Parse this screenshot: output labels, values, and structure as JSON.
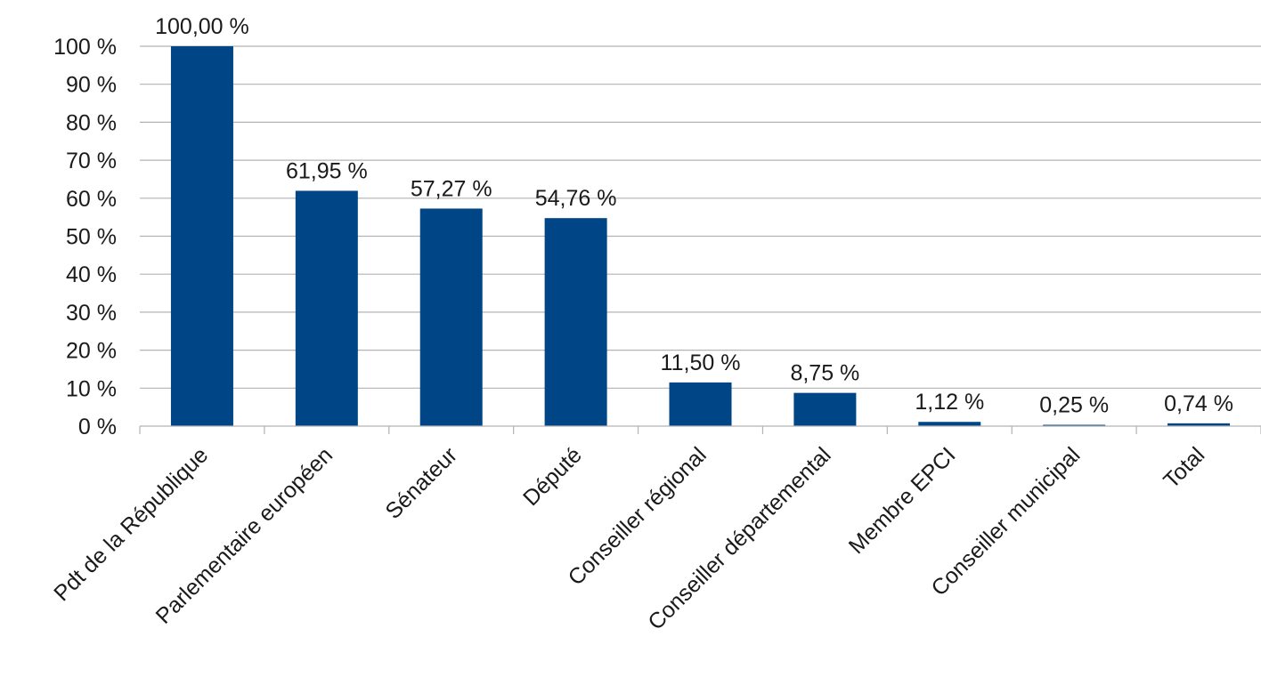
{
  "chart_data": {
    "type": "bar",
    "categories": [
      "Pdt de la République",
      "Parlementaire européen",
      "Sénateur",
      "Député",
      "Conseiller régional",
      "Conseiller départemental",
      "Membre EPCI",
      "Conseiller municipal",
      "Total"
    ],
    "values": [
      100.0,
      61.95,
      57.27,
      54.76,
      11.5,
      8.75,
      1.12,
      0.25,
      0.74
    ],
    "data_labels": [
      "100,00 %",
      "61,95 %",
      "57,27 %",
      "54,76 %",
      "11,50 %",
      "8,75 %",
      "1,12 %",
      "0,25 %",
      "0,74 %"
    ],
    "ylim": [
      0,
      100
    ],
    "yticks": [
      0,
      10,
      20,
      30,
      40,
      50,
      60,
      70,
      80,
      90,
      100
    ],
    "ytick_labels": [
      "0 %",
      "10 %",
      "20 %",
      "30 %",
      "40 %",
      "50 %",
      "60 %",
      "70 %",
      "80 %",
      "90 %",
      "100 %"
    ],
    "grid": true,
    "bar_color": "#004586",
    "title": "",
    "xlabel": "",
    "ylabel": ""
  }
}
